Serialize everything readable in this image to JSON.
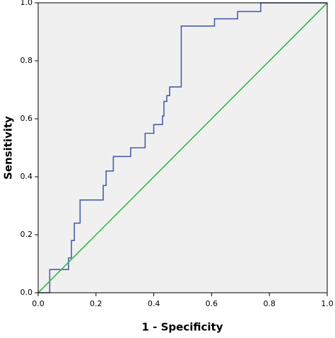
{
  "chart_data": {
    "type": "line",
    "xlabel": "1 - Specificity",
    "ylabel": "Sensitivity",
    "xlim": [
      0,
      1
    ],
    "ylim": [
      0,
      1
    ],
    "xticks": [
      {
        "value": 0,
        "label": "0.0"
      },
      0.2,
      0.4,
      0.6,
      0.8,
      {
        "value": 1,
        "label": "1.0"
      }
    ],
    "yticks": [
      {
        "value": 0,
        "label": "0.0"
      },
      0.2,
      0.4,
      0.6,
      0.8,
      {
        "value": 1,
        "label": "1.0"
      }
    ],
    "background": "#f0f0f0",
    "series": [
      {
        "color": "#4a5ea8",
        "x": [
          0,
          0.04,
          0.04,
          0.105,
          0.105,
          0.115,
          0.115,
          0.125,
          0.125,
          0.145,
          0.145,
          0.225,
          0.225,
          0.235,
          0.235,
          0.26,
          0.26,
          0.32,
          0.32,
          0.37,
          0.37,
          0.4,
          0.4,
          0.43,
          0.43,
          0.435,
          0.435,
          0.445,
          0.445,
          0.455,
          0.455,
          0.495,
          0.495,
          0.61,
          0.61,
          0.69,
          0.69,
          0.77,
          0.77,
          1
        ],
        "values": [
          0,
          0,
          0.08,
          0.08,
          0.12,
          0.12,
          0.18,
          0.18,
          0.24,
          0.24,
          0.32,
          0.32,
          0.37,
          0.37,
          0.42,
          0.42,
          0.47,
          0.47,
          0.5,
          0.5,
          0.55,
          0.55,
          0.58,
          0.58,
          0.61,
          0.61,
          0.66,
          0.66,
          0.68,
          0.68,
          0.71,
          0.71,
          0.92,
          0.92,
          0.945,
          0.945,
          0.97,
          0.97,
          1,
          1
        ]
      },
      {
        "color": "#3cb44b",
        "x": [
          0,
          1
        ],
        "values": [
          0,
          1
        ]
      }
    ]
  }
}
